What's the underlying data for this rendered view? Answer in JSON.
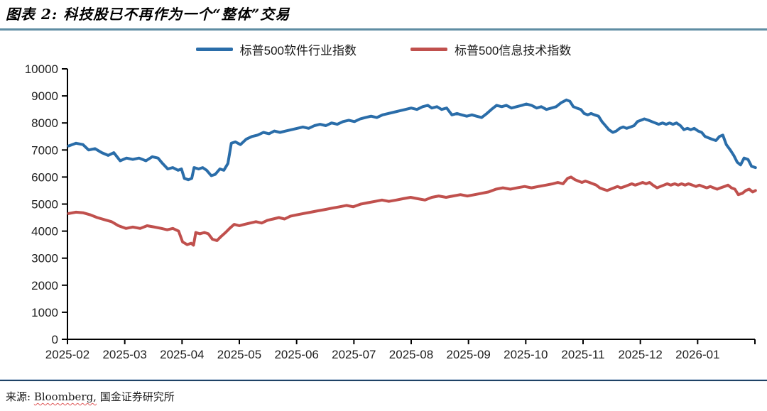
{
  "title": "图表 2: 科技股已不再作为一个“整体”交易",
  "colors": {
    "software": "#2A6DA9",
    "info_tech": "#C0504D",
    "title_rule": "#5F8DA3",
    "footer_rule": "#1F4265",
    "axis": "#000000",
    "tick_text": "#1F1F1F"
  },
  "legend": {
    "items": [
      {
        "label": "标普500软件行业指数",
        "color_key": "software"
      },
      {
        "label": "标普500信息技术指数",
        "color_key": "info_tech"
      }
    ]
  },
  "source": {
    "prefix": "来源: ",
    "vendor": "Bloomberg,",
    "institute": " 国金证券研究所"
  },
  "chart_data": {
    "type": "line",
    "title": "科技股已不再作为一个“整体”交易",
    "xlabel": "",
    "ylabel": "",
    "ylim": [
      0,
      10000
    ],
    "ytick_step": 1000,
    "x_months_span": 12,
    "x_labels": [
      "2025-02",
      "2025-03",
      "2025-04",
      "2025-05",
      "2025-06",
      "2025-07",
      "2025-08",
      "2025-09",
      "2025-10",
      "2025-11",
      "2025-12",
      "2026-01"
    ],
    "grid": false,
    "legend_position": "top",
    "series": [
      {
        "name": "标普500软件行业指数",
        "color": "#2A6DA9",
        "points": [
          [
            0.02,
            7150
          ],
          [
            0.15,
            7250
          ],
          [
            0.27,
            7200
          ],
          [
            0.37,
            7000
          ],
          [
            0.48,
            7050
          ],
          [
            0.6,
            6900
          ],
          [
            0.71,
            6800
          ],
          [
            0.81,
            6900
          ],
          [
            0.92,
            6600
          ],
          [
            1.03,
            6700
          ],
          [
            1.14,
            6650
          ],
          [
            1.25,
            6700
          ],
          [
            1.37,
            6600
          ],
          [
            1.48,
            6750
          ],
          [
            1.58,
            6700
          ],
          [
            1.66,
            6500
          ],
          [
            1.75,
            6300
          ],
          [
            1.84,
            6350
          ],
          [
            1.93,
            6250
          ],
          [
            1.99,
            6300
          ],
          [
            2.04,
            5950
          ],
          [
            2.11,
            5900
          ],
          [
            2.17,
            5950
          ],
          [
            2.21,
            6350
          ],
          [
            2.29,
            6300
          ],
          [
            2.36,
            6350
          ],
          [
            2.43,
            6250
          ],
          [
            2.51,
            6050
          ],
          [
            2.58,
            6100
          ],
          [
            2.66,
            6300
          ],
          [
            2.73,
            6250
          ],
          [
            2.8,
            6500
          ],
          [
            2.86,
            7250
          ],
          [
            2.93,
            7300
          ],
          [
            3.02,
            7200
          ],
          [
            3.12,
            7400
          ],
          [
            3.22,
            7500
          ],
          [
            3.32,
            7550
          ],
          [
            3.42,
            7650
          ],
          [
            3.52,
            7600
          ],
          [
            3.61,
            7700
          ],
          [
            3.71,
            7650
          ],
          [
            3.81,
            7700
          ],
          [
            3.91,
            7750
          ],
          [
            4.01,
            7800
          ],
          [
            4.11,
            7850
          ],
          [
            4.21,
            7800
          ],
          [
            4.31,
            7900
          ],
          [
            4.41,
            7950
          ],
          [
            4.51,
            7900
          ],
          [
            4.61,
            8000
          ],
          [
            4.71,
            7950
          ],
          [
            4.81,
            8050
          ],
          [
            4.91,
            8100
          ],
          [
            5.01,
            8050
          ],
          [
            5.11,
            8150
          ],
          [
            5.2,
            8200
          ],
          [
            5.3,
            8250
          ],
          [
            5.4,
            8200
          ],
          [
            5.5,
            8300
          ],
          [
            5.6,
            8350
          ],
          [
            5.7,
            8400
          ],
          [
            5.8,
            8450
          ],
          [
            5.9,
            8500
          ],
          [
            6.0,
            8550
          ],
          [
            6.1,
            8500
          ],
          [
            6.2,
            8600
          ],
          [
            6.29,
            8650
          ],
          [
            6.36,
            8550
          ],
          [
            6.45,
            8600
          ],
          [
            6.53,
            8500
          ],
          [
            6.62,
            8550
          ],
          [
            6.71,
            8300
          ],
          [
            6.8,
            8350
          ],
          [
            6.88,
            8300
          ],
          [
            6.97,
            8250
          ],
          [
            7.06,
            8300
          ],
          [
            7.14,
            8250
          ],
          [
            7.23,
            8200
          ],
          [
            7.32,
            8350
          ],
          [
            7.4,
            8500
          ],
          [
            7.49,
            8650
          ],
          [
            7.58,
            8600
          ],
          [
            7.66,
            8650
          ],
          [
            7.75,
            8550
          ],
          [
            7.84,
            8600
          ],
          [
            7.93,
            8650
          ],
          [
            8.01,
            8700
          ],
          [
            8.1,
            8650
          ],
          [
            8.19,
            8550
          ],
          [
            8.27,
            8600
          ],
          [
            8.36,
            8500
          ],
          [
            8.45,
            8550
          ],
          [
            8.53,
            8600
          ],
          [
            8.62,
            8750
          ],
          [
            8.71,
            8850
          ],
          [
            8.77,
            8800
          ],
          [
            8.83,
            8600
          ],
          [
            8.89,
            8550
          ],
          [
            8.96,
            8500
          ],
          [
            9.02,
            8350
          ],
          [
            9.08,
            8300
          ],
          [
            9.14,
            8350
          ],
          [
            9.2,
            8300
          ],
          [
            9.27,
            8250
          ],
          [
            9.33,
            8050
          ],
          [
            9.39,
            7900
          ],
          [
            9.45,
            7750
          ],
          [
            9.52,
            7650
          ],
          [
            9.58,
            7700
          ],
          [
            9.64,
            7800
          ],
          [
            9.7,
            7850
          ],
          [
            9.76,
            7800
          ],
          [
            9.83,
            7850
          ],
          [
            9.89,
            7900
          ],
          [
            9.95,
            8050
          ],
          [
            10.01,
            8100
          ],
          [
            10.07,
            8150
          ],
          [
            10.14,
            8100
          ],
          [
            10.2,
            8050
          ],
          [
            10.26,
            8000
          ],
          [
            10.32,
            7950
          ],
          [
            10.39,
            8000
          ],
          [
            10.45,
            7950
          ],
          [
            10.51,
            8000
          ],
          [
            10.57,
            7950
          ],
          [
            10.63,
            8000
          ],
          [
            10.7,
            7900
          ],
          [
            10.76,
            7750
          ],
          [
            10.82,
            7800
          ],
          [
            10.88,
            7750
          ],
          [
            10.94,
            7800
          ],
          [
            11.01,
            7700
          ],
          [
            11.07,
            7650
          ],
          [
            11.13,
            7500
          ],
          [
            11.19,
            7450
          ],
          [
            11.25,
            7400
          ],
          [
            11.32,
            7350
          ],
          [
            11.38,
            7500
          ],
          [
            11.44,
            7550
          ],
          [
            11.5,
            7200
          ],
          [
            11.57,
            7000
          ],
          [
            11.63,
            6800
          ],
          [
            11.69,
            6550
          ],
          [
            11.75,
            6450
          ],
          [
            11.81,
            6700
          ],
          [
            11.88,
            6650
          ],
          [
            11.94,
            6400
          ],
          [
            12.01,
            6350
          ]
        ]
      },
      {
        "name": "标普500信息技术指数",
        "color": "#C0504D",
        "points": [
          [
            0.02,
            4650
          ],
          [
            0.15,
            4700
          ],
          [
            0.27,
            4680
          ],
          [
            0.4,
            4600
          ],
          [
            0.52,
            4500
          ],
          [
            0.65,
            4420
          ],
          [
            0.77,
            4350
          ],
          [
            0.89,
            4200
          ],
          [
            1.02,
            4100
          ],
          [
            1.14,
            4150
          ],
          [
            1.27,
            4100
          ],
          [
            1.39,
            4200
          ],
          [
            1.52,
            4150
          ],
          [
            1.64,
            4100
          ],
          [
            1.74,
            4050
          ],
          [
            1.84,
            4100
          ],
          [
            1.94,
            4000
          ],
          [
            2.01,
            3600
          ],
          [
            2.09,
            3500
          ],
          [
            2.16,
            3550
          ],
          [
            2.2,
            3480
          ],
          [
            2.24,
            3950
          ],
          [
            2.31,
            3900
          ],
          [
            2.39,
            3950
          ],
          [
            2.46,
            3900
          ],
          [
            2.53,
            3700
          ],
          [
            2.61,
            3650
          ],
          [
            2.68,
            3800
          ],
          [
            2.76,
            3950
          ],
          [
            2.83,
            4100
          ],
          [
            2.91,
            4250
          ],
          [
            3.0,
            4200
          ],
          [
            3.09,
            4250
          ],
          [
            3.19,
            4300
          ],
          [
            3.29,
            4350
          ],
          [
            3.39,
            4300
          ],
          [
            3.49,
            4400
          ],
          [
            3.59,
            4450
          ],
          [
            3.69,
            4500
          ],
          [
            3.79,
            4450
          ],
          [
            3.89,
            4550
          ],
          [
            4.0,
            4600
          ],
          [
            4.12,
            4650
          ],
          [
            4.25,
            4700
          ],
          [
            4.37,
            4750
          ],
          [
            4.5,
            4800
          ],
          [
            4.62,
            4850
          ],
          [
            4.75,
            4900
          ],
          [
            4.87,
            4950
          ],
          [
            4.99,
            4900
          ],
          [
            5.12,
            5000
          ],
          [
            5.24,
            5050
          ],
          [
            5.37,
            5100
          ],
          [
            5.49,
            5150
          ],
          [
            5.61,
            5100
          ],
          [
            5.74,
            5150
          ],
          [
            5.86,
            5200
          ],
          [
            5.99,
            5250
          ],
          [
            6.11,
            5200
          ],
          [
            6.24,
            5150
          ],
          [
            6.36,
            5250
          ],
          [
            6.48,
            5300
          ],
          [
            6.61,
            5250
          ],
          [
            6.73,
            5300
          ],
          [
            6.86,
            5350
          ],
          [
            6.98,
            5300
          ],
          [
            7.11,
            5350
          ],
          [
            7.23,
            5400
          ],
          [
            7.35,
            5450
          ],
          [
            7.48,
            5550
          ],
          [
            7.6,
            5600
          ],
          [
            7.73,
            5550
          ],
          [
            7.85,
            5600
          ],
          [
            7.98,
            5650
          ],
          [
            8.1,
            5600
          ],
          [
            8.22,
            5650
          ],
          [
            8.35,
            5700
          ],
          [
            8.47,
            5750
          ],
          [
            8.56,
            5800
          ],
          [
            8.65,
            5750
          ],
          [
            8.73,
            5950
          ],
          [
            8.79,
            6000
          ],
          [
            8.86,
            5900
          ],
          [
            8.92,
            5850
          ],
          [
            8.98,
            5800
          ],
          [
            9.04,
            5850
          ],
          [
            9.11,
            5800
          ],
          [
            9.17,
            5750
          ],
          [
            9.23,
            5700
          ],
          [
            9.29,
            5600
          ],
          [
            9.35,
            5550
          ],
          [
            9.42,
            5500
          ],
          [
            9.48,
            5550
          ],
          [
            9.54,
            5600
          ],
          [
            9.6,
            5650
          ],
          [
            9.66,
            5600
          ],
          [
            9.73,
            5650
          ],
          [
            9.79,
            5700
          ],
          [
            9.85,
            5750
          ],
          [
            9.91,
            5700
          ],
          [
            9.98,
            5750
          ],
          [
            10.04,
            5800
          ],
          [
            10.1,
            5750
          ],
          [
            10.16,
            5800
          ],
          [
            10.22,
            5700
          ],
          [
            10.29,
            5600
          ],
          [
            10.35,
            5650
          ],
          [
            10.41,
            5700
          ],
          [
            10.47,
            5750
          ],
          [
            10.53,
            5700
          ],
          [
            10.6,
            5750
          ],
          [
            10.66,
            5700
          ],
          [
            10.72,
            5750
          ],
          [
            10.78,
            5700
          ],
          [
            10.84,
            5750
          ],
          [
            10.91,
            5700
          ],
          [
            10.97,
            5650
          ],
          [
            11.03,
            5700
          ],
          [
            11.09,
            5650
          ],
          [
            11.16,
            5600
          ],
          [
            11.22,
            5650
          ],
          [
            11.28,
            5600
          ],
          [
            11.34,
            5550
          ],
          [
            11.4,
            5600
          ],
          [
            11.47,
            5650
          ],
          [
            11.53,
            5700
          ],
          [
            11.59,
            5600
          ],
          [
            11.65,
            5550
          ],
          [
            11.71,
            5350
          ],
          [
            11.78,
            5400
          ],
          [
            11.84,
            5500
          ],
          [
            11.9,
            5550
          ],
          [
            11.96,
            5450
          ],
          [
            12.01,
            5500
          ]
        ]
      }
    ]
  }
}
